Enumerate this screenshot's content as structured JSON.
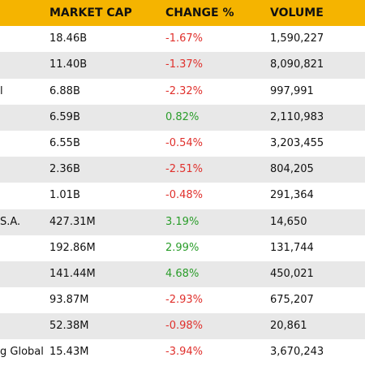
{
  "table": {
    "columns": [
      "MARKET CAP",
      "CHANGE %",
      "VOLUME"
    ],
    "rows": [
      [
        null,
        "18.46B",
        "-1.67%",
        "1,590,227"
      ],
      [
        null,
        "11.40B",
        "-1.37%",
        "8,090,821"
      ],
      [
        "l",
        "6.88B",
        "-2.32%",
        "997,991"
      ],
      [
        null,
        "6.59B",
        "0.82%",
        "2,110,983"
      ],
      [
        null,
        "6.55B",
        "-0.54%",
        "3,203,455"
      ],
      [
        null,
        "2.36B",
        "-2.51%",
        "804,205"
      ],
      [
        null,
        "1.01B",
        "-0.48%",
        "291,364"
      ],
      [
        "S.A.",
        "427.31M",
        "3.19%",
        "14,650"
      ],
      [
        null,
        "192.86M",
        "2.99%",
        "131,744"
      ],
      [
        null,
        "141.44M",
        "4.68%",
        "450,021"
      ],
      [
        null,
        "93.87M",
        "-2.93%",
        "675,207"
      ],
      [
        null,
        "52.38M",
        "-0.98%",
        "20,861"
      ],
      [
        "g Global (",
        "15.43M",
        "-3.94%",
        "3,670,243"
      ]
    ]
  }
}
